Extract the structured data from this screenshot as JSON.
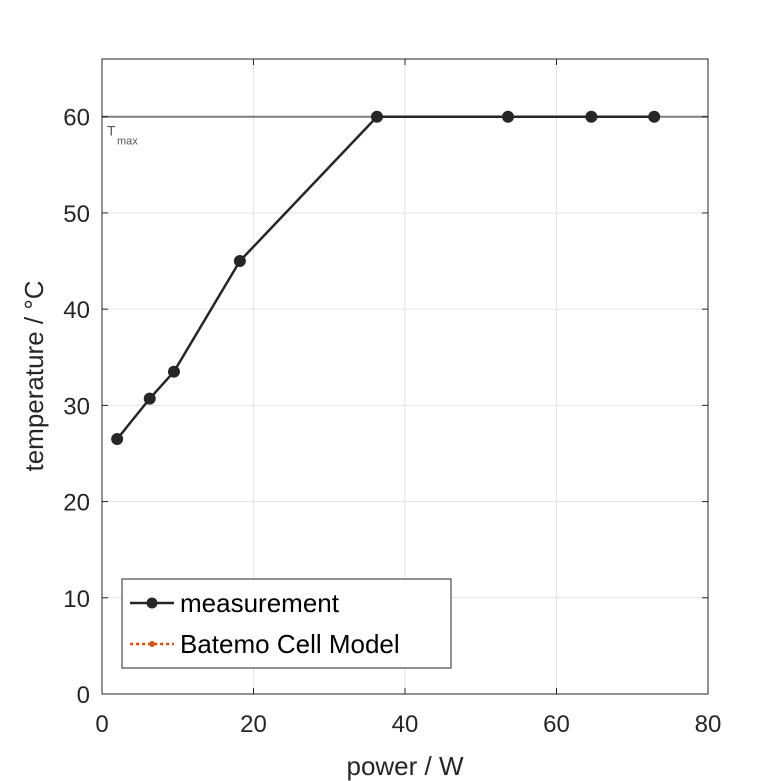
{
  "chart_data": {
    "type": "line",
    "xlabel": "power / W",
    "ylabel": "temperature / °C",
    "xlim": [
      0,
      80
    ],
    "ylim": [
      0,
      66
    ],
    "xticks": [
      0,
      20,
      40,
      60,
      80
    ],
    "yticks": [
      0,
      10,
      20,
      30,
      40,
      50,
      60
    ],
    "grid": true,
    "legend_position": "bottom-left",
    "reference_line": {
      "y": 60,
      "label": "T",
      "label_sub": "max",
      "color": "#7f7f7f"
    },
    "series": [
      {
        "name": "measurement",
        "color": "#262626",
        "style": "solid",
        "marker": "circle",
        "x": [
          2.0,
          6.3,
          9.5,
          18.2,
          36.3,
          53.6,
          64.6,
          72.9
        ],
        "y": [
          26.5,
          30.7,
          33.5,
          45.0,
          60.0,
          60.0,
          60.0,
          60.0
        ]
      },
      {
        "name": "Batemo Cell Model",
        "color": "#d95319",
        "style": "dotted",
        "marker": "dot",
        "x": [],
        "y": []
      }
    ]
  }
}
